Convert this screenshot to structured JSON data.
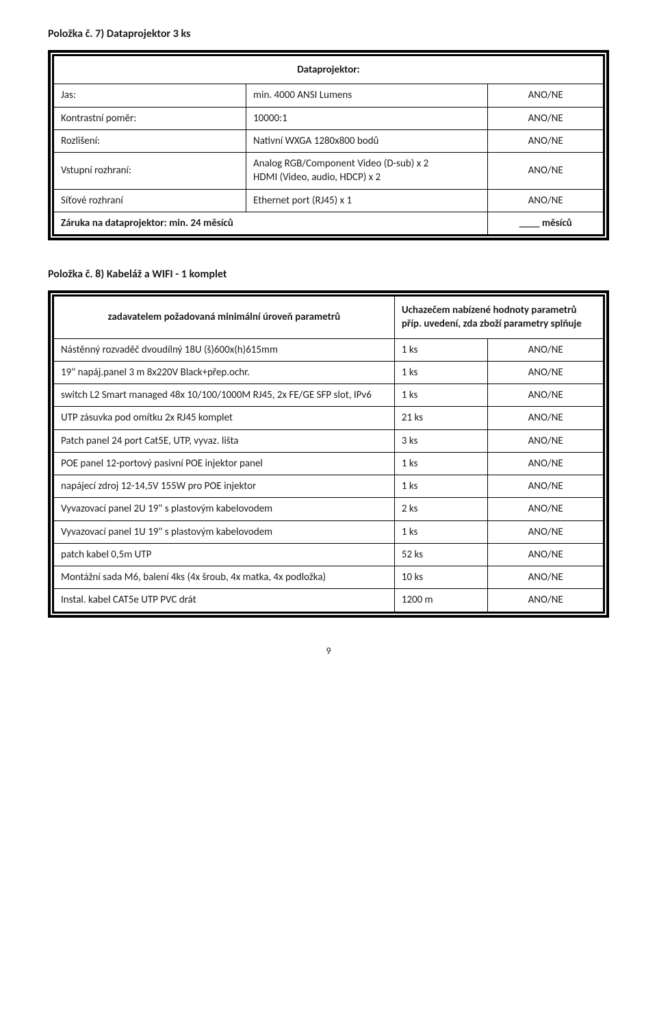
{
  "section1": {
    "heading": "Položka č. 7) Dataprojektor 3 ks",
    "tableTitle": "Dataprojektor:",
    "rows": [
      {
        "label": "Jas:",
        "value": "min. 4000 ANSI Lumens",
        "ano": "ANO/NE"
      },
      {
        "label": "Kontrastní poměr:",
        "value": "10000:1",
        "ano": "ANO/NE"
      },
      {
        "label": "Rozlišení:",
        "value": "Nativní WXGA 1280x800 bodů",
        "ano": "ANO/NE"
      },
      {
        "label": "Vstupní rozhraní:",
        "value": "Analog RGB/Component Video (D-sub) x 2\nHDMI (Video, audio, HDCP) x 2",
        "ano": "ANO/NE"
      },
      {
        "label": "Síťové rozhraní",
        "value": "Ethernet port (RJ45) x 1",
        "ano": "ANO/NE"
      }
    ],
    "footer": {
      "label": "Záruka na dataprojektor: min. 24 měsíců",
      "right": "____ měsíců"
    }
  },
  "section2": {
    "heading": "Položka č. 8) Kabeláž a WIFI  -  1 komplet",
    "headerLeft": "zadavatelem požadovaná minimální úroveň parametrů",
    "headerRight": "Uchazečem nabízené hodnoty parametrů příp. uvedení, zda zboží parametry splňuje",
    "rows": [
      {
        "label": "Nástěnný rozvaděč dvoudílný 18U (š)600x(h)615mm",
        "qty": "1 ks",
        "ano": "ANO/NE"
      },
      {
        "label": "19\" napáj.panel 3 m 8x220V Black+přep.ochr.",
        "qty": "1 ks",
        "ano": "ANO/NE"
      },
      {
        "label": "switch L2 Smart managed 48x 10/100/1000M RJ45, 2x FE/GE SFP slot, IPv6",
        "qty": "1 ks",
        "ano": "ANO/NE"
      },
      {
        "label": "UTP zásuvka pod omítku 2x RJ45 komplet",
        "qty": "21 ks",
        "ano": "ANO/NE"
      },
      {
        "label": "Patch panel 24 port Cat5E, UTP, vyvaz. lišta",
        "qty": "3 ks",
        "ano": "ANO/NE"
      },
      {
        "label": "POE panel 12-portový pasivní POE injektor panel",
        "qty": "1 ks",
        "ano": "ANO/NE"
      },
      {
        "label": "napájecí zdroj 12-14,5V 155W pro POE injektor",
        "qty": "1 ks",
        "ano": "ANO/NE"
      },
      {
        "label": "Vyvazovací panel  2U 19\" s plastovým kabelovodem",
        "qty": "2 ks",
        "ano": "ANO/NE"
      },
      {
        "label": "Vyvazovací panel  1U 19\" s plastovým kabelovodem",
        "qty": "1 ks",
        "ano": "ANO/NE"
      },
      {
        "label": "patch kabel 0,5m UTP",
        "qty": "52 ks",
        "ano": "ANO/NE"
      },
      {
        "label": "Montážní sada M6, balení 4ks (4x šroub, 4x matka, 4x podložka)",
        "qty": "10 ks",
        "ano": "ANO/NE"
      },
      {
        "label": "Instal. kabel CAT5e UTP PVC drát",
        "qty": "1200 m",
        "ano": "ANO/NE"
      }
    ]
  },
  "pageNumber": "9",
  "colors": {
    "text": "#1a1a1a",
    "border": "#000000",
    "background": "#ffffff"
  }
}
